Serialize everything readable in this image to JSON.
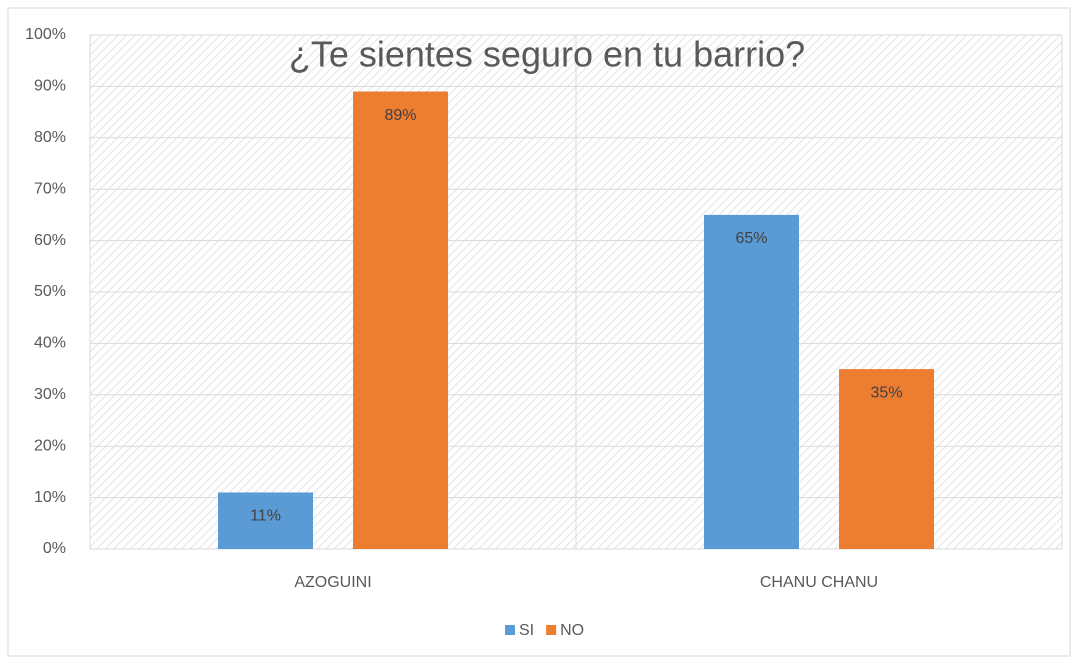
{
  "chart_data": {
    "type": "bar",
    "title": "¿Te sientes seguro en tu barrio?",
    "categories": [
      "AZOGUINI",
      "CHANU CHANU"
    ],
    "series": [
      {
        "name": "SI",
        "color": "#5b9bd5",
        "values": [
          11,
          65
        ],
        "value_labels": [
          "11%",
          "65%"
        ]
      },
      {
        "name": "NO",
        "color": "#ed7d31",
        "values": [
          89,
          35
        ],
        "value_labels": [
          "89%",
          "35%"
        ]
      }
    ],
    "ylim": [
      0,
      100
    ],
    "yticks": [
      {
        "value": 0,
        "label": "0%"
      },
      {
        "value": 10,
        "label": "10%"
      },
      {
        "value": 20,
        "label": "20%"
      },
      {
        "value": 30,
        "label": "30%"
      },
      {
        "value": 40,
        "label": "40%"
      },
      {
        "value": 50,
        "label": "50%"
      },
      {
        "value": 60,
        "label": "60%"
      },
      {
        "value": 70,
        "label": "70%"
      },
      {
        "value": 80,
        "label": "80%"
      },
      {
        "value": 90,
        "label": "90%"
      },
      {
        "value": 100,
        "label": "100%"
      }
    ],
    "grid": true,
    "legend": "bottom"
  }
}
